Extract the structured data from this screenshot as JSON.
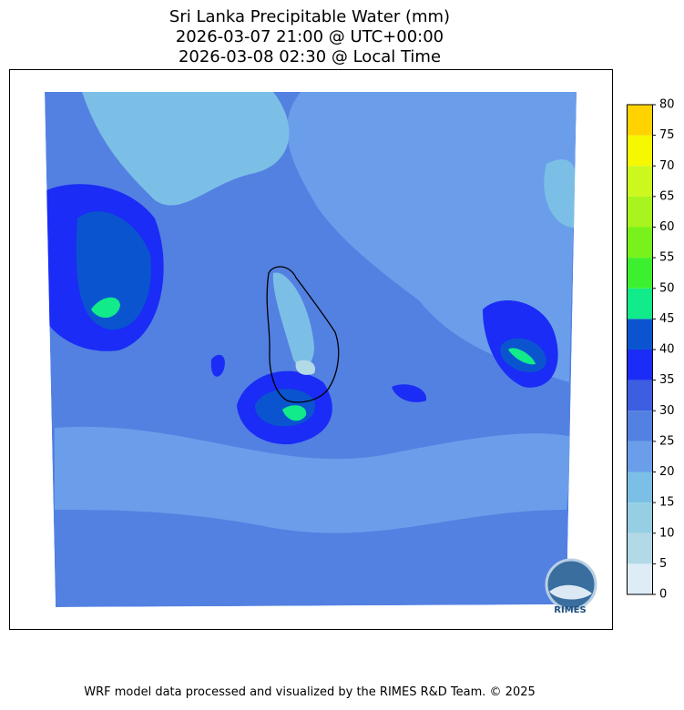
{
  "title": [
    "Sri Lanka Precipitable Water (mm)",
    "2026-03-07 21:00 @ UTC+00:00",
    "2026-03-08 02:30 @ Local Time"
  ],
  "colorbar": {
    "ylim": [
      0,
      80
    ],
    "yticks": [
      0,
      5,
      10,
      15,
      20,
      25,
      30,
      35,
      40,
      45,
      50,
      55,
      60,
      65,
      70,
      75,
      80
    ],
    "colors": [
      "#ddecf7",
      "#b2d9e6",
      "#96cfe3",
      "#7cbfe6",
      "#6a9eea",
      "#5381e2",
      "#3d5ee0",
      "#1a2cf5",
      "#0a55cf",
      "#12eb8a",
      "#3cf030",
      "#78f21a",
      "#a8f41e",
      "#cdf81e",
      "#f6f800",
      "#ffd200"
    ]
  },
  "logo": "RIMES",
  "footer": "WRF model data processed and visualized by the RIMES R&D Team. © 2025"
}
